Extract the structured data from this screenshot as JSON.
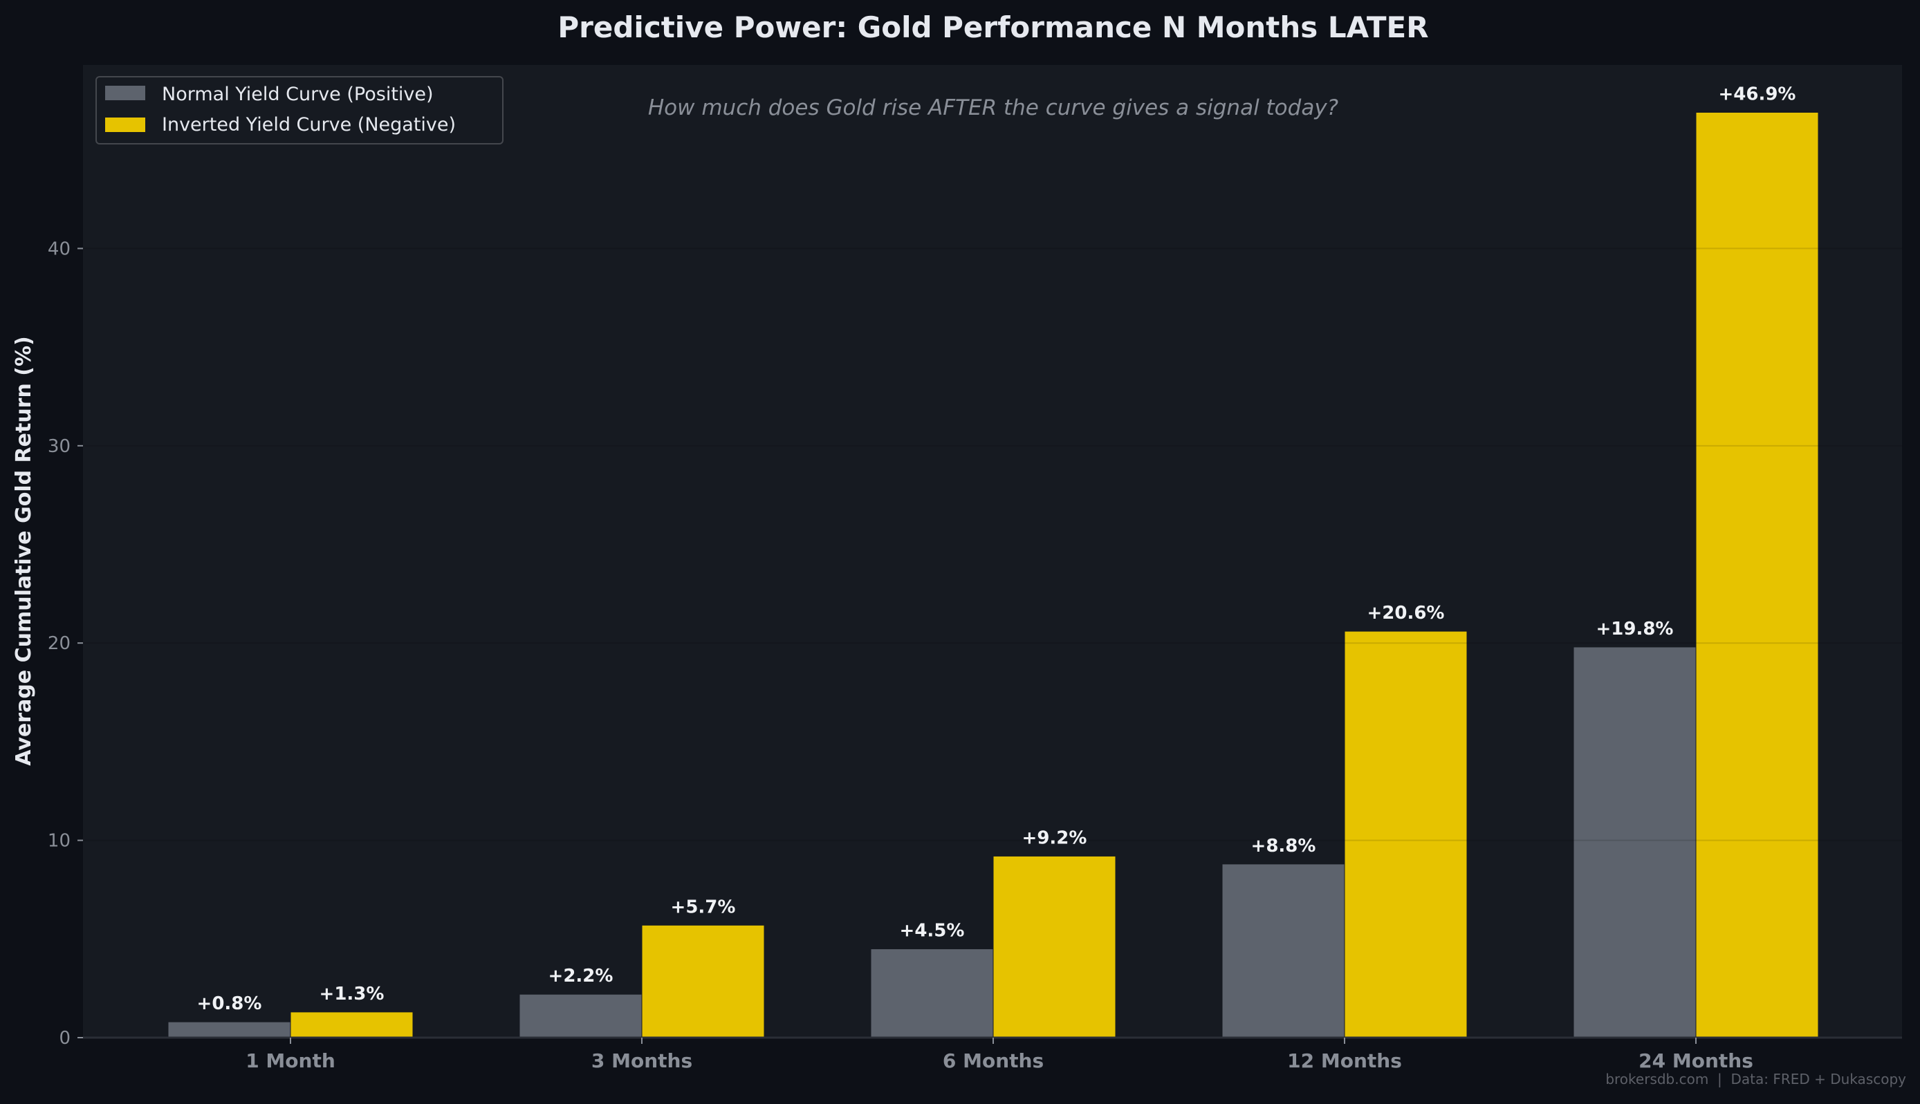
{
  "chart_data": {
    "type": "bar",
    "title": "Predictive Power: Gold Performance N Months LATER",
    "subtitle": "How much does Gold rise AFTER the curve gives a signal today?",
    "xlabel": "",
    "ylabel": "Average Cumulative Gold Return (%)",
    "categories": [
      "1 Month",
      "3 Months",
      "6 Months",
      "12 Months",
      "24 Months"
    ],
    "series": [
      {
        "name": "Normal Yield Curve (Positive)",
        "color": "#5d636d",
        "values": [
          0.8,
          2.2,
          4.5,
          8.8,
          19.8
        ],
        "labels": [
          "+0.8%",
          "+2.2%",
          "+4.5%",
          "+8.8%",
          "+19.8%"
        ]
      },
      {
        "name": "Inverted Yield Curve (Negative)",
        "color": "#e6c300",
        "values": [
          1.3,
          5.7,
          9.2,
          20.6,
          46.9
        ],
        "labels": [
          "+1.3%",
          "+5.7%",
          "+9.2%",
          "+20.6%",
          "+46.9%"
        ]
      }
    ],
    "ylim": [
      0,
      49.3
    ],
    "yticks": [
      "0",
      "10",
      "20",
      "30",
      "40"
    ],
    "grid": true,
    "legend": "top-left",
    "footer": "brokersdb.com  |  Data: FRED + Dukascopy"
  },
  "colors": {
    "background": "#0d1017",
    "plot_background": "#161a21",
    "title": "#e6e9ef",
    "tick": "#8a8f98"
  }
}
